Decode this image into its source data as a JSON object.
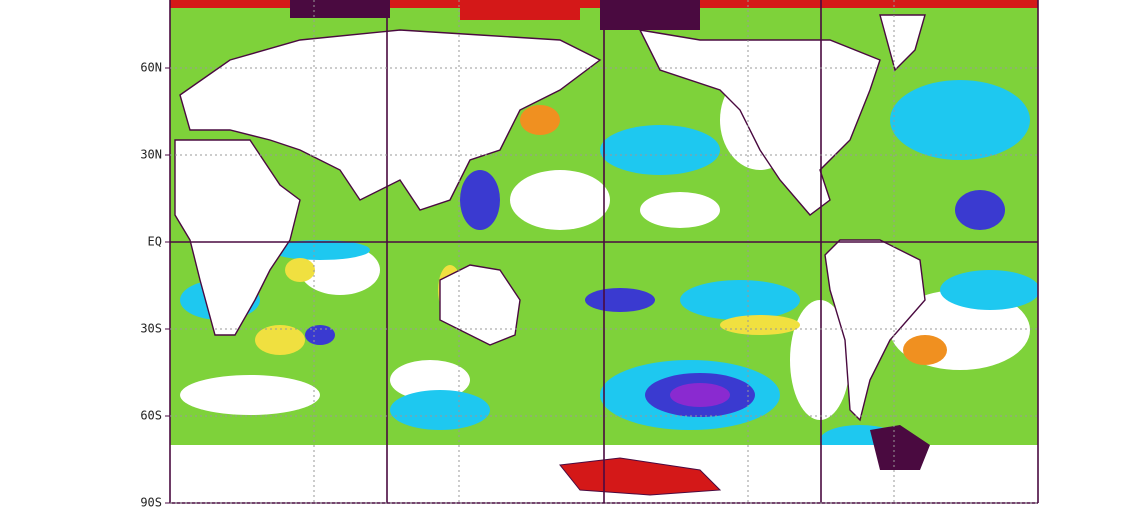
{
  "latitude_labels": [
    "60N",
    "30N",
    "EQ",
    "30S",
    "60S",
    "90S"
  ]
}
